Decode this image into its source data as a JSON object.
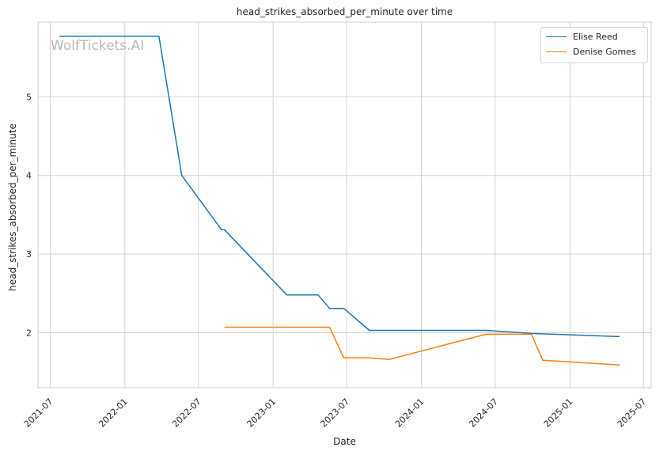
{
  "chart_data": {
    "type": "line",
    "title": "head_strikes_absorbed_per_minute over time",
    "xlabel": "Date",
    "ylabel": "head_strikes_absorbed_per_minute",
    "watermark": "WolfTickets.AI",
    "grid": true,
    "legend_position": "top-right",
    "x_ticks": [
      "2021-07",
      "2022-01",
      "2022-07",
      "2023-01",
      "2023-07",
      "2024-01",
      "2024-07",
      "2025-01",
      "2025-07"
    ],
    "y_ticks": [
      2,
      3,
      4,
      5
    ],
    "xlim": [
      "2021-06-01",
      "2025-07-20"
    ],
    "ylim": [
      1.3,
      5.95
    ],
    "series": [
      {
        "name": "Elise Reed",
        "color": "#1f77b4",
        "x": [
          "2021-07-24",
          "2022-03-26",
          "2022-05-21",
          "2022-08-27",
          "2022-09-03",
          "2023-02-04",
          "2023-04-22",
          "2023-05-20",
          "2023-06-24",
          "2023-08-26",
          "2024-06-08",
          "2024-09-28",
          "2025-05-03"
        ],
        "y": [
          5.77,
          5.77,
          4.0,
          3.31,
          3.31,
          2.48,
          2.48,
          2.31,
          2.31,
          2.03,
          2.03,
          1.99,
          1.95
        ]
      },
      {
        "name": "Denise Gomes",
        "color": "#ff7f0e",
        "x": [
          "2022-09-03",
          "2023-05-20",
          "2023-06-24",
          "2023-08-26",
          "2023-10-14",
          "2024-06-08",
          "2024-09-28",
          "2024-10-26",
          "2025-05-03"
        ],
        "y": [
          2.07,
          2.07,
          1.68,
          1.68,
          1.66,
          1.98,
          1.98,
          1.65,
          1.59
        ]
      }
    ]
  }
}
